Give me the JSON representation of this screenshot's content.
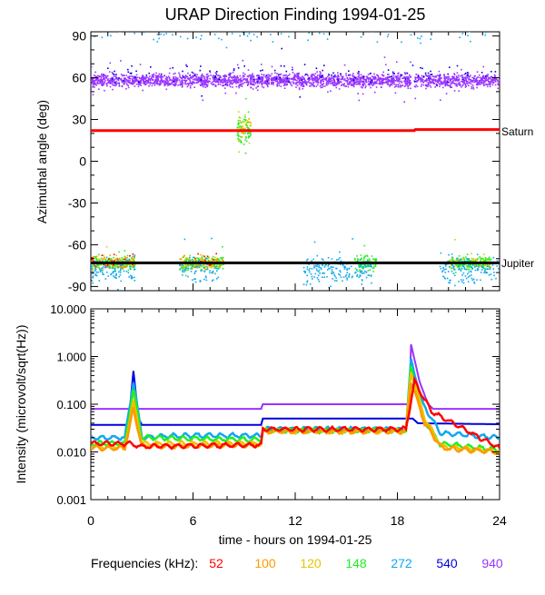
{
  "title": "URAP Direction Finding  1994-01-25",
  "colors": {
    "f52": "#ff0000",
    "f100": "#ff9900",
    "f120": "#e8c400",
    "f148": "#22ee22",
    "f272": "#10a8f0",
    "f540": "#0000dd",
    "f940": "#9933ff",
    "black": "#000000"
  },
  "legend": {
    "label": "Frequencies (kHz):",
    "items": [
      {
        "text": "52",
        "color": "#ff0000"
      },
      {
        "text": "100",
        "color": "#ff9900"
      },
      {
        "text": "120",
        "color": "#e8c400"
      },
      {
        "text": "148",
        "color": "#22ee22"
      },
      {
        "text": "272",
        "color": "#10a8f0"
      },
      {
        "text": "540",
        "color": "#0000dd"
      },
      {
        "text": "940",
        "color": "#9933ff"
      }
    ]
  },
  "chart_data": [
    {
      "type": "scatter",
      "panel": "azimuth",
      "ylabel": "Azimuthal angle (deg)",
      "xlim": [
        0,
        24
      ],
      "ylim": [
        -93,
        93
      ],
      "yticks": [
        -90,
        -60,
        -30,
        0,
        30,
        60,
        90
      ],
      "ref_lines": [
        {
          "name": "Saturn",
          "color": "#ff0000",
          "points": [
            [
              0,
              22
            ],
            [
              19,
              22
            ],
            [
              19.05,
              22.8
            ],
            [
              24,
              22.8
            ]
          ]
        },
        {
          "name": "Jupiter",
          "color": "#000000",
          "points": [
            [
              0,
              -73
            ],
            [
              24,
              -73
            ]
          ]
        }
      ],
      "series": [
        {
          "freq": "940",
          "color": "#9933ff",
          "base": 58,
          "spread": 4,
          "ranges": [
            [
              0,
              18.8
            ],
            [
              19.0,
              24
            ]
          ],
          "n": 2400
        },
        {
          "freq": "540",
          "color": "#0000dd",
          "base": 62,
          "spread": 6,
          "ranges": [
            [
              1,
              24
            ]
          ],
          "n": 130
        },
        {
          "freq": "272",
          "color": "#10a8f0",
          "base": 90,
          "spread": 4,
          "ranges": [
            [
              0,
              24
            ]
          ],
          "n": 70
        },
        {
          "freq": "148",
          "color": "#22ee22",
          "base": 22,
          "spread": 8,
          "ranges": [
            [
              8.6,
              9.4
            ]
          ],
          "n": 80
        },
        {
          "freq": "120",
          "color": "#e8c400",
          "base": 24,
          "spread": 8,
          "ranges": [
            [
              8.6,
              9.4
            ]
          ],
          "n": 40
        },
        {
          "freq": "148",
          "color": "#22ee22",
          "base": -73,
          "spread": 4,
          "ranges": [
            [
              0,
              2.6
            ],
            [
              5.2,
              7.8
            ],
            [
              15.5,
              16.8
            ],
            [
              21,
              23.5
            ]
          ],
          "n": 700
        },
        {
          "freq": "120",
          "color": "#e8c400",
          "base": -73,
          "spread": 4,
          "ranges": [
            [
              0,
              2.6
            ],
            [
              5.2,
              7.8
            ],
            [
              21,
              23.5
            ]
          ],
          "n": 200
        },
        {
          "freq": "100",
          "color": "#ff9900",
          "base": -73,
          "spread": 4,
          "ranges": [
            [
              0,
              2.6
            ],
            [
              5.2,
              7.8
            ]
          ],
          "n": 120
        },
        {
          "freq": "52",
          "color": "#ff0000",
          "base": -72,
          "spread": 6,
          "ranges": [
            [
              0,
              2.6
            ],
            [
              6,
              7.5
            ]
          ],
          "n": 40
        },
        {
          "freq": "272",
          "color": "#10a8f0",
          "base": -78,
          "spread": 8,
          "ranges": [
            [
              0,
              2.6
            ],
            [
              5.2,
              7.5
            ],
            [
              12.5,
              16.5
            ],
            [
              20.5,
              24
            ]
          ],
          "n": 500
        }
      ]
    },
    {
      "type": "line",
      "panel": "intensity",
      "ylabel": "Intensity (microvolt/sqrt(Hz))",
      "xlabel": "time - hours on 1994-01-25",
      "xlim": [
        0,
        24
      ],
      "xticks": [
        0,
        6,
        12,
        18,
        24
      ],
      "ylim": [
        0.001,
        10
      ],
      "yscale": "log",
      "yticks": [
        "0.001",
        "0.010",
        "0.100",
        "1.000",
        "10.000"
      ],
      "series": [
        {
          "freq": "940",
          "color": "#9933ff",
          "points": [
            [
              0,
              0.08
            ],
            [
              10,
              0.08
            ],
            [
              10.1,
              0.1
            ],
            [
              18.7,
              0.1
            ],
            [
              18.8,
              1.8
            ],
            [
              19.3,
              0.3
            ],
            [
              19.8,
              0.1
            ],
            [
              20.1,
              0.08
            ],
            [
              24,
              0.08
            ]
          ]
        },
        {
          "freq": "540",
          "color": "#0000dd",
          "points": [
            [
              0,
              0.037
            ],
            [
              2.2,
              0.037
            ],
            [
              2.5,
              0.5
            ],
            [
              2.8,
              0.05
            ],
            [
              3,
              0.037
            ],
            [
              10,
              0.037
            ],
            [
              10.1,
              0.05
            ],
            [
              18.7,
              0.05
            ],
            [
              18.9,
              0.05
            ],
            [
              19.2,
              0.04
            ],
            [
              24,
              0.038
            ]
          ]
        },
        {
          "freq": "272",
          "color": "#10a8f0",
          "points": [
            [
              0,
              0.02
            ],
            [
              2,
              0.02
            ],
            [
              2.5,
              0.3
            ],
            [
              3,
              0.02
            ],
            [
              5,
              0.022
            ],
            [
              10,
              0.022
            ],
            [
              10.1,
              0.03
            ],
            [
              18.5,
              0.03
            ],
            [
              18.8,
              0.8
            ],
            [
              19.5,
              0.1
            ],
            [
              20.5,
              0.025
            ],
            [
              24,
              0.02
            ]
          ]
        },
        {
          "freq": "148",
          "color": "#22ee22",
          "points": [
            [
              0,
              0.015
            ],
            [
              2,
              0.015
            ],
            [
              2.5,
              0.2
            ],
            [
              3,
              0.02
            ],
            [
              10,
              0.018
            ],
            [
              10.1,
              0.028
            ],
            [
              18.5,
              0.028
            ],
            [
              18.8,
              0.6
            ],
            [
              19.5,
              0.05
            ],
            [
              20.5,
              0.015
            ],
            [
              24,
              0.011
            ]
          ]
        },
        {
          "freq": "120",
          "color": "#e8c400",
          "points": [
            [
              0,
              0.013
            ],
            [
              2,
              0.013
            ],
            [
              2.5,
              0.12
            ],
            [
              3,
              0.015
            ],
            [
              10,
              0.015
            ],
            [
              10.1,
              0.027
            ],
            [
              18.5,
              0.027
            ],
            [
              18.8,
              0.5
            ],
            [
              19.6,
              0.05
            ],
            [
              20.6,
              0.013
            ],
            [
              24,
              0.01
            ]
          ]
        },
        {
          "freq": "100",
          "color": "#ff9900",
          "points": [
            [
              0,
              0.012
            ],
            [
              2,
              0.012
            ],
            [
              2.5,
              0.08
            ],
            [
              3,
              0.013
            ],
            [
              10,
              0.014
            ],
            [
              10.1,
              0.027
            ],
            [
              18.5,
              0.027
            ],
            [
              18.8,
              0.3
            ],
            [
              19.6,
              0.04
            ],
            [
              20.6,
              0.012
            ],
            [
              24,
              0.01
            ]
          ]
        },
        {
          "freq": "52",
          "color": "#ff0000",
          "points": [
            [
              0,
              0.015
            ],
            [
              2.2,
              0.015
            ],
            [
              3,
              0.013
            ],
            [
              10,
              0.014
            ],
            [
              10.1,
              0.03
            ],
            [
              18.5,
              0.03
            ],
            [
              19,
              0.3
            ],
            [
              20,
              0.07
            ],
            [
              24,
              0.012
            ]
          ]
        }
      ]
    }
  ],
  "right_labels": {
    "saturn": "Saturn",
    "jupiter": "Jupiter"
  }
}
